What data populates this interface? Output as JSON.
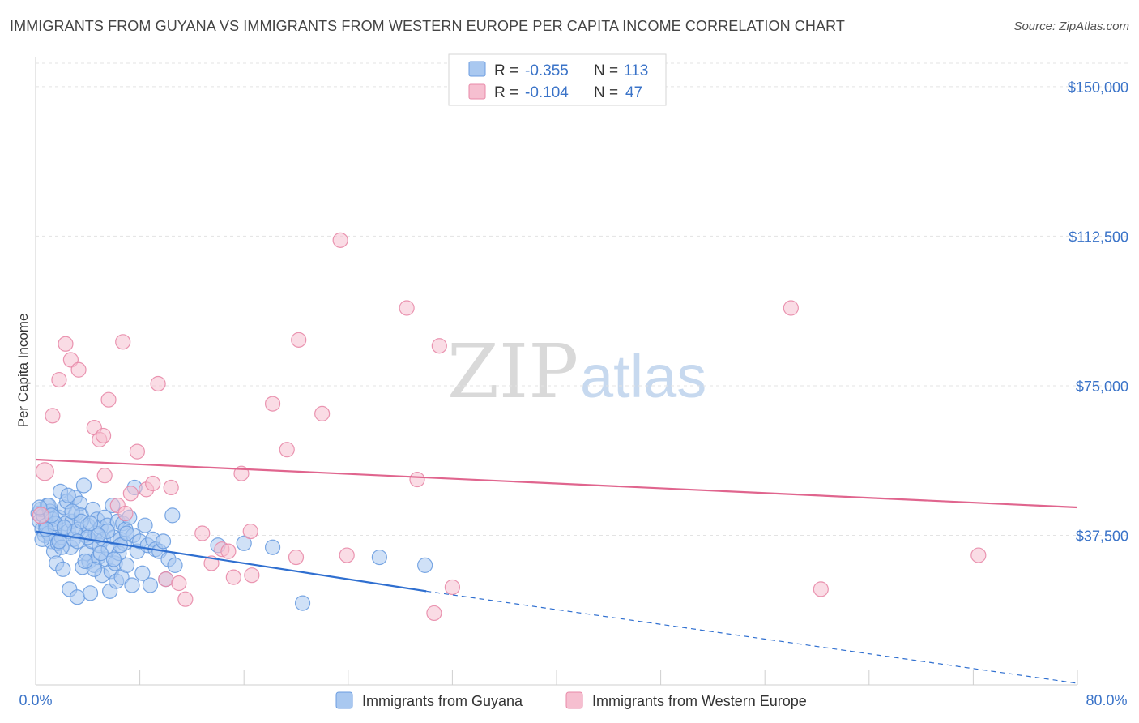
{
  "title": "IMMIGRANTS FROM GUYANA VS IMMIGRANTS FROM WESTERN EUROPE PER CAPITA INCOME CORRELATION CHART",
  "source": "Source: ZipAtlas.com",
  "watermark": {
    "zip": "ZIP",
    "atlas": "atlas"
  },
  "legend": {
    "rows": [
      {
        "r_label": "R =",
        "r_value": "-0.355",
        "n_label": "N =",
        "n_value": "113",
        "color": "#a9c8f0",
        "stroke": "#6c9de0"
      },
      {
        "r_label": "R =",
        "r_value": "-0.104",
        "n_label": "N =",
        "n_value": "47",
        "color": "#f6bfd0",
        "stroke": "#e88aa8"
      }
    ]
  },
  "chart_data": {
    "type": "scatter",
    "ylabel": "Per Capita Income",
    "xlim": [
      0,
      80
    ],
    "ylim": [
      0,
      157500
    ],
    "x_tick_labels": {
      "min": "0.0%",
      "max": "80.0%"
    },
    "y_ticks": [
      {
        "value": 37500,
        "label": "$37,500"
      },
      {
        "value": 75000,
        "label": "$75,000"
      },
      {
        "value": 112500,
        "label": "$112,500"
      },
      {
        "value": 150000,
        "label": "$150,000"
      }
    ],
    "grid": true,
    "series": [
      {
        "name": "Immigrants from Guyana",
        "color": "#6c9de0",
        "fill": "#a9c8f0",
        "trend": {
          "x0": 0,
          "y0": 38500,
          "x1": 30,
          "y1": 23500,
          "dash_to_x": 80,
          "dash_to_y": -1500,
          "color": "#2f6fd0"
        },
        "points": [
          [
            0.2,
            43000
          ],
          [
            0.3,
            41000
          ],
          [
            0.4,
            44000
          ],
          [
            0.5,
            39000
          ],
          [
            0.6,
            42500
          ],
          [
            0.7,
            37500
          ],
          [
            0.8,
            40000
          ],
          [
            0.9,
            45000
          ],
          [
            1.0,
            38000
          ],
          [
            1.1,
            43500
          ],
          [
            1.2,
            36000
          ],
          [
            1.3,
            41500
          ],
          [
            1.4,
            33500
          ],
          [
            1.5,
            39500
          ],
          [
            1.6,
            30500
          ],
          [
            1.7,
            35500
          ],
          [
            1.8,
            42000
          ],
          [
            1.9,
            48500
          ],
          [
            2.0,
            37000
          ],
          [
            2.1,
            29000
          ],
          [
            2.2,
            44500
          ],
          [
            2.3,
            40500
          ],
          [
            2.4,
            46000
          ],
          [
            2.5,
            38500
          ],
          [
            2.6,
            24000
          ],
          [
            2.7,
            34500
          ],
          [
            2.8,
            41000
          ],
          [
            2.9,
            36500
          ],
          [
            3.0,
            47000
          ],
          [
            3.1,
            43000
          ],
          [
            3.2,
            22000
          ],
          [
            3.3,
            39000
          ],
          [
            3.4,
            45500
          ],
          [
            3.5,
            42500
          ],
          [
            3.6,
            29500
          ],
          [
            3.7,
            50000
          ],
          [
            3.8,
            37500
          ],
          [
            3.9,
            33000
          ],
          [
            4.0,
            40000
          ],
          [
            4.1,
            31000
          ],
          [
            4.2,
            23000
          ],
          [
            4.3,
            36000
          ],
          [
            4.4,
            44000
          ],
          [
            4.5,
            30000
          ],
          [
            4.6,
            38000
          ],
          [
            4.7,
            41500
          ],
          [
            4.8,
            32000
          ],
          [
            4.9,
            35000
          ],
          [
            5.0,
            39500
          ],
          [
            5.1,
            27500
          ],
          [
            5.2,
            36500
          ],
          [
            5.3,
            42000
          ],
          [
            5.4,
            31500
          ],
          [
            5.5,
            40000
          ],
          [
            5.6,
            34000
          ],
          [
            5.7,
            23500
          ],
          [
            5.8,
            28500
          ],
          [
            5.9,
            45000
          ],
          [
            6.0,
            37000
          ],
          [
            6.1,
            30500
          ],
          [
            6.2,
            26000
          ],
          [
            6.3,
            41000
          ],
          [
            6.4,
            33000
          ],
          [
            6.5,
            36500
          ],
          [
            6.6,
            27000
          ],
          [
            6.7,
            40500
          ],
          [
            6.8,
            35500
          ],
          [
            6.9,
            39000
          ],
          [
            7.0,
            30000
          ],
          [
            7.2,
            42000
          ],
          [
            7.4,
            25000
          ],
          [
            7.5,
            37500
          ],
          [
            7.6,
            49500
          ],
          [
            7.8,
            33500
          ],
          [
            8.0,
            36000
          ],
          [
            8.2,
            28000
          ],
          [
            8.4,
            40000
          ],
          [
            8.6,
            35000
          ],
          [
            8.8,
            25000
          ],
          [
            9.0,
            36500
          ],
          [
            9.2,
            34000
          ],
          [
            9.5,
            33500
          ],
          [
            9.8,
            36000
          ],
          [
            10.0,
            26500
          ],
          [
            10.2,
            31500
          ],
          [
            10.5,
            42500
          ],
          [
            10.7,
            30000
          ],
          [
            0.5,
            36500
          ],
          [
            1.0,
            45000
          ],
          [
            1.5,
            40500
          ],
          [
            2.0,
            34500
          ],
          [
            2.5,
            47500
          ],
          [
            3.0,
            38500
          ],
          [
            3.5,
            41000
          ],
          [
            4.0,
            37000
          ],
          [
            4.5,
            29000
          ],
          [
            5.0,
            33000
          ],
          [
            5.5,
            38500
          ],
          [
            6.0,
            31500
          ],
          [
            6.5,
            35000
          ],
          [
            7.0,
            38000
          ],
          [
            1.2,
            42500
          ],
          [
            2.2,
            39500
          ],
          [
            3.2,
            36000
          ],
          [
            4.2,
            40500
          ],
          [
            14.0,
            35000
          ],
          [
            16.0,
            35500
          ],
          [
            18.2,
            34500
          ],
          [
            20.5,
            20500
          ],
          [
            26.4,
            32000
          ],
          [
            29.9,
            30000
          ],
          [
            0.8,
            39000
          ],
          [
            1.8,
            36000
          ],
          [
            2.8,
            43500
          ],
          [
            3.8,
            31000
          ],
          [
            4.8,
            37500
          ],
          [
            0.3,
            44500
          ]
        ]
      },
      {
        "name": "Immigrants from Western Europe",
        "color": "#e88aa8",
        "fill": "#f6bfd0",
        "trend": {
          "x0": 0,
          "y0": 56500,
          "x1": 80,
          "y1": 44500,
          "color": "#e0658e"
        },
        "points": [
          [
            0.7,
            53500
          ],
          [
            1.3,
            67500
          ],
          [
            1.8,
            76500
          ],
          [
            2.3,
            85500
          ],
          [
            2.7,
            81500
          ],
          [
            3.3,
            79000
          ],
          [
            4.5,
            64500
          ],
          [
            4.9,
            61500
          ],
          [
            5.2,
            62500
          ],
          [
            5.6,
            71500
          ],
          [
            5.3,
            52500
          ],
          [
            6.3,
            45000
          ],
          [
            6.7,
            86000
          ],
          [
            6.9,
            43000
          ],
          [
            7.3,
            48000
          ],
          [
            7.8,
            58500
          ],
          [
            8.5,
            49000
          ],
          [
            9.0,
            50500
          ],
          [
            9.4,
            75500
          ],
          [
            10.4,
            49500
          ],
          [
            10.0,
            26500
          ],
          [
            11.0,
            25500
          ],
          [
            11.5,
            21500
          ],
          [
            12.8,
            38000
          ],
          [
            13.5,
            30500
          ],
          [
            14.3,
            34000
          ],
          [
            14.8,
            33500
          ],
          [
            15.2,
            27000
          ],
          [
            15.8,
            53000
          ],
          [
            16.5,
            38500
          ],
          [
            16.6,
            27500
          ],
          [
            18.2,
            70500
          ],
          [
            19.3,
            59000
          ],
          [
            20.2,
            86500
          ],
          [
            20.0,
            32000
          ],
          [
            22.0,
            68000
          ],
          [
            23.4,
            111500
          ],
          [
            23.9,
            32500
          ],
          [
            28.5,
            94500
          ],
          [
            29.3,
            51500
          ],
          [
            30.6,
            18000
          ],
          [
            31.0,
            85000
          ],
          [
            32.0,
            24500
          ],
          [
            58.0,
            94500
          ],
          [
            60.3,
            24000
          ],
          [
            72.4,
            32500
          ],
          [
            0.4,
            42500
          ]
        ]
      }
    ]
  },
  "bottom_legend": [
    {
      "label": "Immigrants from Guyana",
      "color": "#a9c8f0",
      "stroke": "#6c9de0"
    },
    {
      "label": "Immigrants from Western Europe",
      "color": "#f6bfd0",
      "stroke": "#e88aa8"
    }
  ]
}
